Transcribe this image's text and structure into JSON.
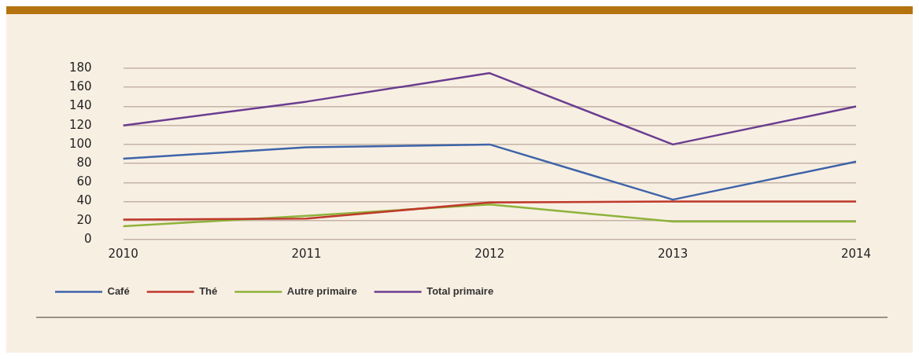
{
  "chart_data": {
    "type": "line",
    "categories": [
      "2010",
      "2011",
      "2012",
      "2013",
      "2014"
    ],
    "series": [
      {
        "name": "Café",
        "color": "#3e64a8",
        "values": [
          85,
          97,
          100,
          42,
          82
        ]
      },
      {
        "name": "Thé",
        "color": "#c0392b",
        "values": [
          21,
          22,
          39,
          40,
          40
        ]
      },
      {
        "name": "Autre primaire",
        "color": "#8db33a",
        "values": [
          14,
          25,
          37,
          19,
          19
        ]
      },
      {
        "name": "Total primaire",
        "color": "#6a3d8f",
        "values": [
          120,
          145,
          175,
          100,
          140
        ]
      }
    ],
    "ylim": [
      0,
      180
    ],
    "yticks": [
      0,
      20,
      40,
      60,
      80,
      100,
      120,
      140,
      160,
      180
    ],
    "grid": "y",
    "legend": "bottom",
    "marker": "none",
    "line_style": "solid"
  }
}
